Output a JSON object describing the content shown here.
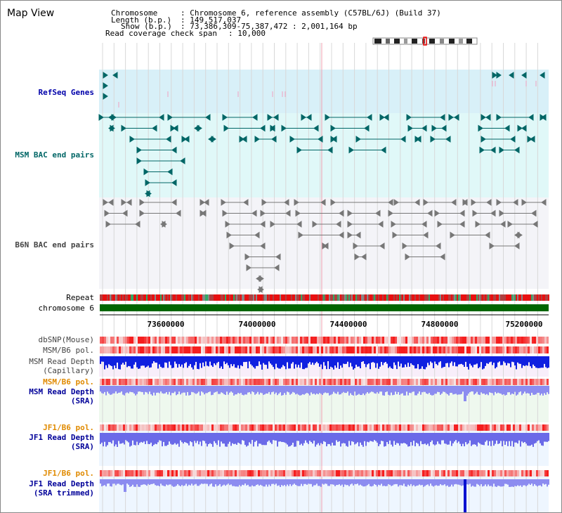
{
  "view": {
    "title": "Map View",
    "info": {
      "chromosome_key": "Chromosome",
      "chromosome_value": ": Chromosome 6, reference assembly (C57BL/6J) (Build 37)",
      "length_key": "Length (b.p.)",
      "length_value": ": 149,517,037",
      "show_key": "Show (b.p.)",
      "show_value": ": 73,386,309-75,387,472 : 2,001,164 bp",
      "span_key": "Read coverage check span",
      "span_value": ": 10,000"
    }
  },
  "tracks": {
    "refseq": "RefSeq Genes",
    "msm_bac": "MSM BAC end pairs",
    "b6n_bac": "B6N BAC end pairs",
    "repeat": "Repeat",
    "chromosome": "chromosome 6",
    "dbsnp": "dbSNP(Mouse)",
    "msm_b6_pol": "MSM/B6 pol.",
    "msm_depth_cap_1": "MSM Read Depth",
    "msm_depth_cap_2": "(Capillary)",
    "msm_b6_pol_2": "MSM/B6 pol.",
    "msm_depth_sra_1": "MSM Read Depth",
    "msm_depth_sra_2": "(SRA)",
    "jf1_b6_pol": "JF1/B6 pol.",
    "jf1_depth_sra_1": "JF1 Read Depth",
    "jf1_depth_sra_2": "(SRA)",
    "jf1_b6_pol_2": "JF1/B6 pol.",
    "jf1_depth_trim_1": "JF1 Read Depth",
    "jf1_depth_trim_2": "(SRA trimmed)"
  },
  "scale": {
    "labels": [
      "73600000",
      "74000000",
      "74400000",
      "74800000",
      "75200000"
    ]
  },
  "colors": {
    "label_blue": "#0000aa",
    "label_teal": "#006666",
    "label_gray": "#444444",
    "label_orange": "#e08a00",
    "label_darkblue": "#000099",
    "chromosome_green": "#006600",
    "refseq_bg": "#d8f0f8",
    "msm_bg": "#e0f8f8"
  }
}
